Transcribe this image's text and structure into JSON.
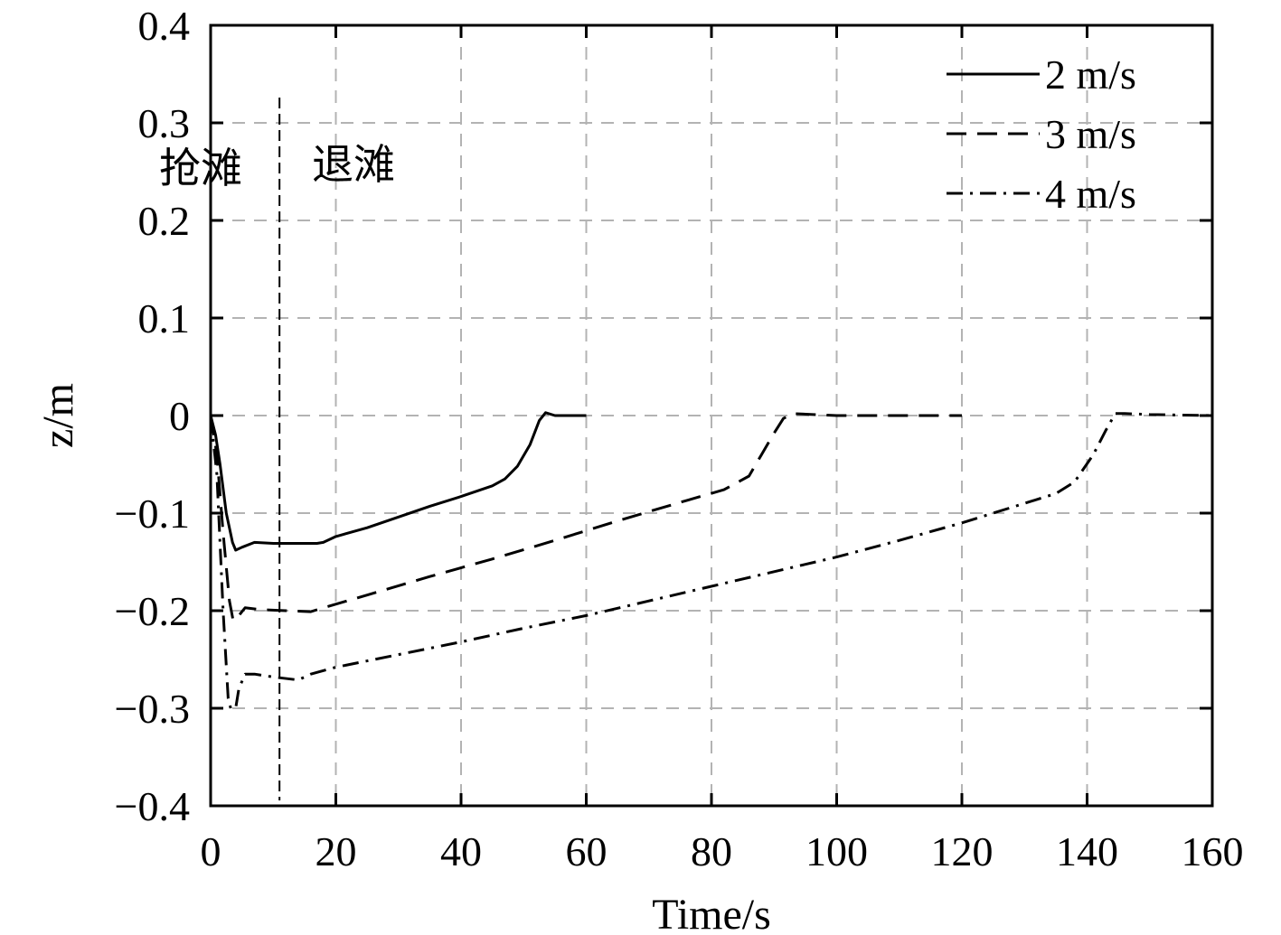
{
  "chart_data": {
    "type": "line",
    "xlabel": "Time/s",
    "ylabel": "z/m",
    "xlim": [
      0,
      160
    ],
    "ylim": [
      -0.4,
      0.4
    ],
    "x_ticks": [
      0,
      20,
      40,
      60,
      80,
      100,
      120,
      140,
      160
    ],
    "x_tick_labels": [
      "0",
      "20",
      "40",
      "60",
      "80",
      "100",
      "120",
      "140",
      "160"
    ],
    "y_ticks": [
      0.4,
      0.3,
      0.2,
      0.1,
      0,
      -0.1,
      -0.2,
      -0.3,
      -0.4
    ],
    "y_tick_labels": [
      "0.4",
      "0.3",
      "0.2",
      "0.1",
      "0",
      "−0.1",
      "−0.2",
      "−0.3",
      "−0.4"
    ],
    "grid": true,
    "legend_position": "top-right",
    "annotations": {
      "divider_x": 11,
      "left_label": "抢滩",
      "right_label": "退滩"
    },
    "series": [
      {
        "name": "2 m/s",
        "style": "solid",
        "points": [
          [
            0,
            0
          ],
          [
            0.8,
            -0.02
          ],
          [
            1.5,
            -0.05
          ],
          [
            2.5,
            -0.1
          ],
          [
            3.5,
            -0.13
          ],
          [
            4,
            -0.138
          ],
          [
            5,
            -0.135
          ],
          [
            7,
            -0.13
          ],
          [
            10,
            -0.131
          ],
          [
            14,
            -0.131
          ],
          [
            17,
            -0.131
          ],
          [
            18,
            -0.13
          ],
          [
            20,
            -0.124
          ],
          [
            25,
            -0.115
          ],
          [
            30,
            -0.104
          ],
          [
            35,
            -0.093
          ],
          [
            40,
            -0.083
          ],
          [
            45,
            -0.072
          ],
          [
            47,
            -0.065
          ],
          [
            49,
            -0.052
          ],
          [
            51,
            -0.03
          ],
          [
            52.5,
            -0.005
          ],
          [
            53.5,
            0.003
          ],
          [
            55,
            0
          ],
          [
            60,
            0
          ]
        ]
      },
      {
        "name": "3 m/s",
        "style": "dashed",
        "points": [
          [
            0,
            0
          ],
          [
            1,
            -0.04
          ],
          [
            2,
            -0.12
          ],
          [
            3,
            -0.19
          ],
          [
            3.6,
            -0.21
          ],
          [
            4.5,
            -0.205
          ],
          [
            5.5,
            -0.197
          ],
          [
            8,
            -0.199
          ],
          [
            12,
            -0.2
          ],
          [
            16,
            -0.201
          ],
          [
            18,
            -0.197
          ],
          [
            25,
            -0.184
          ],
          [
            35,
            -0.165
          ],
          [
            45,
            -0.147
          ],
          [
            55,
            -0.128
          ],
          [
            65,
            -0.108
          ],
          [
            75,
            -0.089
          ],
          [
            82,
            -0.076
          ],
          [
            86,
            -0.062
          ],
          [
            88,
            -0.04
          ],
          [
            90,
            -0.018
          ],
          [
            91.5,
            -0.003
          ],
          [
            93,
            0.002
          ],
          [
            100,
            0
          ],
          [
            110,
            0
          ],
          [
            120,
            0
          ]
        ]
      },
      {
        "name": "4 m/s",
        "style": "dashdot",
        "points": [
          [
            0,
            0
          ],
          [
            1,
            -0.06
          ],
          [
            2,
            -0.2
          ],
          [
            2.8,
            -0.29
          ],
          [
            3.2,
            -0.3
          ],
          [
            4,
            -0.3
          ],
          [
            4.5,
            -0.28
          ],
          [
            5.5,
            -0.265
          ],
          [
            7,
            -0.265
          ],
          [
            10,
            -0.268
          ],
          [
            14,
            -0.271
          ],
          [
            16,
            -0.265
          ],
          [
            20,
            -0.258
          ],
          [
            30,
            -0.245
          ],
          [
            40,
            -0.232
          ],
          [
            50,
            -0.218
          ],
          [
            60,
            -0.205
          ],
          [
            70,
            -0.19
          ],
          [
            80,
            -0.175
          ],
          [
            90,
            -0.16
          ],
          [
            100,
            -0.145
          ],
          [
            110,
            -0.128
          ],
          [
            120,
            -0.11
          ],
          [
            130,
            -0.09
          ],
          [
            135,
            -0.08
          ],
          [
            138,
            -0.068
          ],
          [
            141,
            -0.04
          ],
          [
            143,
            -0.015
          ],
          [
            144.5,
            0.002
          ],
          [
            146,
            0.002
          ],
          [
            150,
            0.001
          ],
          [
            160,
            0
          ]
        ]
      }
    ]
  }
}
